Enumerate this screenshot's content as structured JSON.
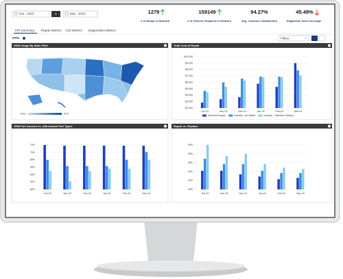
{
  "header": {
    "date_from": "Oct - 2023",
    "date_to_label": "to",
    "date_to": "Mar - 2024",
    "kpis": [
      {
        "value": "1279",
        "label": "# of Shops in Network"
      },
      {
        "value": "159149",
        "label": "# of Vehicles Repaired in Network"
      },
      {
        "value": "94.27%",
        "label": "Avg. Customer Satisfaction"
      },
      {
        "value": "45.49%",
        "label": "Diagnostic Scan Coverage"
      }
    ]
  },
  "tabs": [
    "KPI Summary",
    "Repair Metrics",
    "CSI Metrics",
    "Diagnostics Metrics"
  ],
  "section": "KPIs",
  "filters": "Filters",
  "map_panel": {
    "title": "OEM Usage By State Filter",
    "legend_min": "63%",
    "legend_max": "97%"
  },
  "chart_data": [
    {
      "type": "bar",
      "title": "Total Cost of Repair",
      "categories": [
        "Oct-23",
        "Nov-23",
        "Dec-23",
        "Jan-24",
        "Feb-24",
        "Mar-24"
      ],
      "series": [
        {
          "name": "Selected Region",
          "color": "#1f3fbf",
          "values": [
            2850,
            3400,
            3700,
            5800,
            5300,
            9000
          ]
        },
        {
          "name": "Industry - All States",
          "color": "#3a8ee6",
          "values": [
            4700,
            6000,
            6600,
            6900,
            6900,
            7900
          ]
        },
        {
          "name": "Industry - Selected State(s)",
          "color": "#8ccbf0",
          "values": [
            4500,
            5300,
            6300,
            6800,
            6800,
            7100
          ]
        }
      ],
      "ylim": [
        2000,
        10000
      ],
      "yticks": [
        {
          "value": 2000,
          "label": "$2,000"
        },
        {
          "value": 3000,
          "label": "$3,000"
        },
        {
          "value": 4000,
          "label": "$4,000"
        },
        {
          "value": 5000,
          "label": "$5,000"
        },
        {
          "value": 6000,
          "label": "$6,000"
        },
        {
          "value": 7000,
          "label": "$7,000"
        },
        {
          "value": 8000,
          "label": "$8,000"
        },
        {
          "value": 9000,
          "label": "$9,000"
        },
        {
          "value": 10000,
          "label": "$10,000"
        }
      ],
      "grid": true
    },
    {
      "type": "bar",
      "title": "OEM Part Amount vs. Aftermarket Part Types",
      "categories": [
        "Oct-23",
        "Nov-23",
        "Dec-23",
        "Jan-24",
        "Feb-24",
        "Mar-24"
      ],
      "series": [
        {
          "color": "#1f3fbf",
          "values": [
            72,
            71.8,
            71.8,
            71.8,
            71.8,
            71.8
          ]
        },
        {
          "color": "#3a8ee6",
          "values": [
            68,
            66.3,
            66.3,
            66.3,
            68,
            70.1
          ]
        },
        {
          "color": "#8ccbf0",
          "values": [
            65,
            62.2,
            65,
            65.6,
            65.6,
            68
          ]
        }
      ],
      "ylim": [
        60,
        72
      ],
      "yticks": [
        {
          "value": 60,
          "label": "60%"
        },
        {
          "value": 62,
          "label": "62%"
        },
        {
          "value": 64,
          "label": "64%"
        },
        {
          "value": 66,
          "label": "66%"
        },
        {
          "value": 68,
          "label": "68%"
        },
        {
          "value": 70,
          "label": "70%"
        },
        {
          "value": 72,
          "label": "72%"
        }
      ],
      "grid": true
    },
    {
      "type": "bar",
      "title": "Repair vs. Replace",
      "categories": [
        "Oct-23",
        "Nov-23",
        "Dec-23",
        "Jan-24",
        "Feb-24",
        "Mar-24"
      ],
      "series": [
        {
          "color": "#1f3fbf",
          "values": [
            24.2,
            24.2,
            23.4,
            22.9,
            22.3,
            22.6
          ]
        },
        {
          "color": "#3a8ee6",
          "values": [
            26.9,
            25.7,
            25.7,
            24.2,
            23.7,
            23.7
          ]
        },
        {
          "color": "#8ccbf0",
          "values": [
            30,
            27.5,
            28,
            25.7,
            24.9,
            24.6
          ]
        }
      ],
      "ylim": [
        20,
        30
      ],
      "yticks": [
        {
          "value": 20,
          "label": "20%"
        },
        {
          "value": 22,
          "label": "22%"
        },
        {
          "value": 24,
          "label": "24%"
        },
        {
          "value": 26,
          "label": "26%"
        },
        {
          "value": 28,
          "label": "28%"
        },
        {
          "value": 30,
          "label": "30%"
        }
      ],
      "grid": true
    }
  ]
}
